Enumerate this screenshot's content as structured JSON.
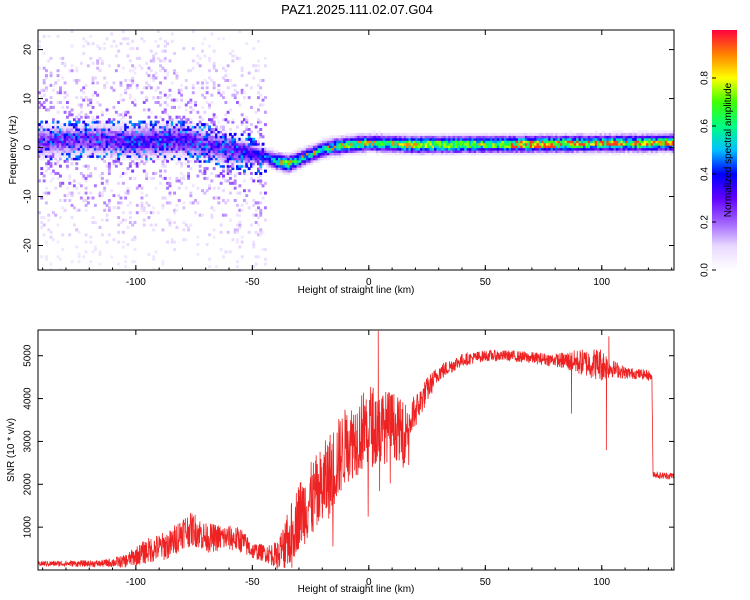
{
  "title": "PAZ1.2025.111.02.07.G04",
  "chart_data": [
    {
      "type": "heatmap",
      "title": "PAZ1.2025.111.02.07.G04",
      "xlabel": "Height of straight line (km)",
      "ylabel": "Frequency (Hz)",
      "xlim": [
        -142,
        131
      ],
      "ylim": [
        -25,
        24
      ],
      "x_ticks": [
        -100,
        -50,
        0,
        50,
        100
      ],
      "x_tick_labels": [
        "-100",
        "-50",
        "0",
        "50",
        "100"
      ],
      "y_ticks": [
        -20,
        -10,
        0,
        10,
        20
      ],
      "y_tick_labels": [
        "-20",
        "-10",
        "0",
        "10",
        "20"
      ],
      "colorbar": {
        "label": "Normalized spectral amplitude",
        "range": [
          0.0,
          1.0
        ],
        "ticks": [
          0.0,
          0.2,
          0.4,
          0.6,
          0.8
        ],
        "tick_labels": [
          "0.0",
          "0.2",
          "0.4",
          "0.6",
          "0.8"
        ],
        "colormap": [
          "#ffffff",
          "#e8d8ff",
          "#a060ff",
          "#6000ff",
          "#0000ff",
          "#00c0ff",
          "#00ff80",
          "#40ff00",
          "#ffff00",
          "#ff8000",
          "#ff0040"
        ]
      },
      "ridge": {
        "x": [
          -142,
          -120,
          -100,
          -80,
          -70,
          -60,
          -50,
          -45,
          -40,
          -35,
          -30,
          -25,
          -20,
          -15,
          -10,
          -5,
          0,
          10,
          20,
          50,
          80,
          100,
          131
        ],
        "y": [
          1.0,
          1.5,
          1.0,
          1.5,
          0.5,
          -0.5,
          -1.5,
          -2.0,
          -3.0,
          -3.5,
          -2.5,
          -1.5,
          -0.5,
          0.0,
          0.3,
          0.6,
          0.8,
          0.6,
          0.4,
          0.5,
          0.6,
          0.7,
          0.8
        ],
        "amplitude": [
          0.25,
          0.25,
          0.3,
          0.3,
          0.25,
          0.3,
          0.35,
          0.4,
          0.55,
          0.7,
          0.55,
          0.5,
          0.55,
          0.6,
          0.65,
          0.7,
          0.6,
          0.65,
          0.75,
          0.7,
          0.75,
          0.7,
          0.75
        ],
        "width_hz": [
          4,
          4,
          4,
          4,
          4,
          3.5,
          2.5,
          2,
          2,
          2,
          2,
          2,
          2,
          2,
          2,
          2,
          2,
          2,
          2,
          2,
          2,
          2,
          2
        ]
      },
      "scatter_region": {
        "x_range": [
          -142,
          -45
        ],
        "y_range": [
          -25,
          24
        ]
      }
    },
    {
      "type": "line",
      "xlabel": "Height of straight line (km)",
      "ylabel": "SNR (10 * v/v)",
      "xlim": [
        -142,
        131
      ],
      "ylim": [
        0,
        5600
      ],
      "color": "#ee2222",
      "x_ticks": [
        -100,
        -50,
        0,
        50,
        100
      ],
      "x_tick_labels": [
        "-100",
        "-50",
        "0",
        "50",
        "100"
      ],
      "y_ticks": [
        1000,
        2000,
        3000,
        4000,
        5000
      ],
      "y_tick_labels": [
        "1000",
        "2000",
        "3000",
        "4000",
        "5000"
      ],
      "envelope": {
        "x": [
          -142,
          -115,
          -105,
          -95,
          -85,
          -80,
          -75,
          -70,
          -60,
          -55,
          -50,
          -45,
          -40,
          -35,
          -30,
          -25,
          -20,
          -15,
          -10,
          -5,
          0,
          5,
          10,
          15,
          20,
          25,
          30,
          40,
          50,
          60,
          80,
          90,
          100,
          105,
          110,
          115,
          120,
          121.5,
          122,
          125,
          131
        ],
        "mean": [
          150,
          150,
          200,
          450,
          600,
          900,
          950,
          750,
          750,
          700,
          450,
          400,
          350,
          600,
          1300,
          1600,
          1900,
          2400,
          2900,
          3100,
          3400,
          3300,
          3400,
          3200,
          3700,
          4200,
          4600,
          4900,
          5000,
          5000,
          4900,
          4850,
          4800,
          4700,
          4600,
          4580,
          4550,
          4500,
          2250,
          2200,
          2200
        ],
        "noise": [
          60,
          80,
          150,
          300,
          350,
          400,
          400,
          350,
          300,
          300,
          200,
          200,
          300,
          700,
          800,
          900,
          1000,
          1000,
          900,
          900,
          1000,
          900,
          800,
          700,
          400,
          300,
          200,
          150,
          130,
          130,
          150,
          300,
          400,
          200,
          150,
          120,
          120,
          100,
          80,
          80,
          80
        ]
      },
      "spikes": [
        {
          "x": 4,
          "y": 5580
        },
        {
          "x": 87,
          "y": 3650
        },
        {
          "x": 102,
          "y": 2800
        },
        {
          "x": 103,
          "y": 5450
        }
      ]
    }
  ]
}
